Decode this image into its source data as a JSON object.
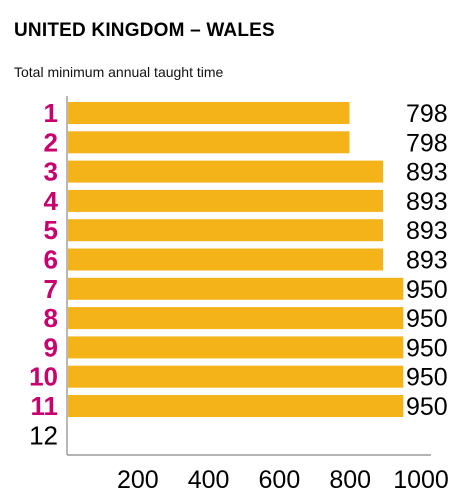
{
  "chart_data": {
    "type": "bar",
    "orientation": "horizontal",
    "title": "UNITED KINGDOM – WALES",
    "subtitle": "Total minimum annual taught time",
    "categories": [
      "1",
      "2",
      "3",
      "4",
      "5",
      "6",
      "7",
      "8",
      "9",
      "10",
      "11",
      "12"
    ],
    "values": [
      798,
      798,
      893,
      893,
      893,
      893,
      950,
      950,
      950,
      950,
      950,
      null
    ],
    "value_labels": [
      "798",
      "798",
      "893",
      "893",
      "893",
      "893",
      "950",
      "950",
      "950",
      "950",
      "950",
      ""
    ],
    "xlim": [
      0,
      1000
    ],
    "x_ticks": [
      200,
      400,
      600,
      800,
      1000
    ],
    "x_tick_labels": [
      "200",
      "400",
      "600",
      "800",
      "1000"
    ],
    "grid": false,
    "colors": {
      "bar": "#F5B31A",
      "category_label": "#C8006E",
      "category_label_empty": "#000000",
      "axis": "#888888"
    }
  }
}
